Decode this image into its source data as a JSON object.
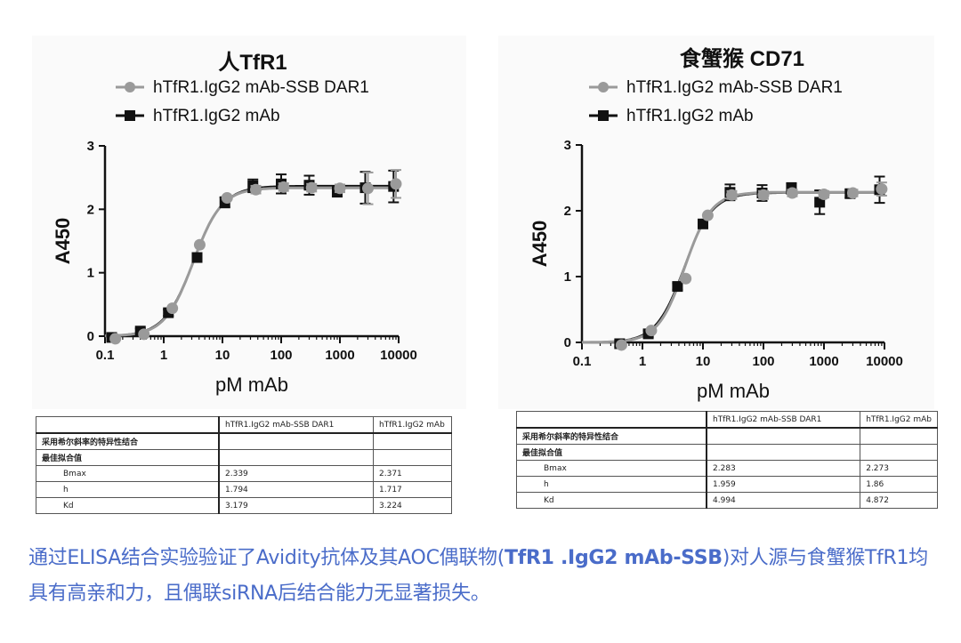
{
  "chart_data": [
    {
      "type": "scatter",
      "title": "人TfR1",
      "xlabel": "pM mAb",
      "ylabel": "A450",
      "xscale": "log",
      "xlim": [
        0.1,
        10000
      ],
      "ylim": [
        0,
        3
      ],
      "xticks": [
        "0.1",
        "1",
        "10",
        "100",
        "1000",
        "10000"
      ],
      "yticks": [
        "0",
        "1",
        "2",
        "3"
      ],
      "legend_position": "top",
      "series": [
        {
          "name": "hTfR1.IgG2 mAb-SSB DAR1",
          "marker": "circle",
          "color": "#9a9a9a",
          "x": [
            0.15,
            0.46,
            1.4,
            4.1,
            12,
            37,
            110,
            330,
            1000,
            3000,
            9000
          ],
          "y": [
            -0.04,
            0.03,
            0.44,
            1.44,
            2.18,
            2.31,
            2.35,
            2.34,
            2.33,
            2.33,
            2.4
          ],
          "err": [
            0,
            0,
            0,
            0,
            0,
            0.06,
            0.06,
            0.06,
            0.06,
            0.25,
            0.22
          ],
          "fit": {
            "bottom": 0,
            "top": 2.339,
            "kd": 3.179,
            "h": 1.794
          }
        },
        {
          "name": "hTfR1.IgG2 mAb",
          "marker": "square",
          "color": "#111111",
          "x": [
            0.13,
            0.4,
            1.2,
            3.7,
            11,
            33,
            100,
            300,
            900,
            2700,
            8200
          ],
          "y": [
            -0.02,
            0.08,
            0.37,
            1.24,
            2.11,
            2.37,
            2.4,
            2.38,
            2.28,
            2.34,
            2.36
          ],
          "err": [
            0.04,
            0.04,
            0.05,
            0.06,
            0.08,
            0.1,
            0.15,
            0.15,
            0.08,
            0.25,
            0.25
          ],
          "fit": {
            "bottom": 0,
            "top": 2.371,
            "kd": 3.224,
            "h": 1.717
          }
        }
      ]
    },
    {
      "type": "scatter",
      "title": "食蟹猴 CD71",
      "xlabel": "pM mAb",
      "ylabel": "A450",
      "xscale": "log",
      "xlim": [
        0.1,
        10000
      ],
      "ylim": [
        0,
        3
      ],
      "xticks": [
        "0.1",
        "1",
        "10",
        "100",
        "1000",
        "10000"
      ],
      "yticks": [
        "0",
        "1",
        "2",
        "3"
      ],
      "legend_position": "top",
      "series": [
        {
          "name": "hTfR1.IgG2 mAb-SSB DAR1",
          "marker": "circle",
          "color": "#9a9a9a",
          "x": [
            0.45,
            1.4,
            5.2,
            12,
            30,
            100,
            300,
            1000,
            3000,
            9000
          ],
          "y": [
            -0.04,
            0.18,
            0.97,
            1.93,
            2.24,
            2.24,
            2.27,
            2.25,
            2.27,
            2.33
          ],
          "err": [
            0,
            0,
            0,
            0,
            0.06,
            0.06,
            0.05,
            0.05,
            0.05,
            0.1
          ],
          "fit": {
            "bottom": 0,
            "top": 2.283,
            "kd": 4.994,
            "h": 1.959
          }
        },
        {
          "name": "hTfR1.IgG2 mAb",
          "marker": "square",
          "color": "#111111",
          "x": [
            0.42,
            1.25,
            3.8,
            10,
            28,
            95,
            290,
            850,
            2700,
            8300
          ],
          "y": [
            -0.02,
            0.13,
            0.85,
            1.8,
            2.28,
            2.27,
            2.34,
            2.13,
            2.26,
            2.32
          ],
          "err": [
            0.04,
            0.05,
            0.05,
            0.06,
            0.12,
            0.12,
            0.08,
            0.18,
            0.06,
            0.2
          ],
          "fit": {
            "bottom": 0,
            "top": 2.273,
            "kd": 4.872,
            "h": 1.86
          }
        }
      ]
    }
  ],
  "tables": [
    {
      "headers": [
        "",
        "hTfR1.IgG2 mAb-SSB DAR1",
        "hTfR1.IgG2 mAb"
      ],
      "section": "采用希尔斜率的特异性结合",
      "subsection": "最佳拟合值",
      "rows": [
        {
          "label": "Bmax",
          "v1": "2.339",
          "v2": "2.371"
        },
        {
          "label": "h",
          "v1": "1.794",
          "v2": "1.717"
        },
        {
          "label": "Kd",
          "v1": "3.179",
          "v2": "3.224"
        }
      ]
    },
    {
      "headers": [
        "",
        "hTfR1.IgG2 mAb-SSB DAR1",
        "hTfR1.IgG2 mAb"
      ],
      "section": "采用希尔斜率的特异性结合",
      "subsection": "最佳拟合值",
      "rows": [
        {
          "label": "Bmax",
          "v1": "2.283",
          "v2": "2.273"
        },
        {
          "label": "h",
          "v1": "1.959",
          "v2": "1.86"
        },
        {
          "label": "Kd",
          "v1": "4.994",
          "v2": "4.872"
        }
      ]
    }
  ],
  "caption": {
    "part1": "通过ELISA结合实验验证了Avidity抗体及其AOC偶联物(",
    "bold": "TfR1 .IgG2 mAb-SSB",
    "part2": ")对人源与食蟹猴TfR1均具有高亲和力，且偶联siRNA后结合能力无显著损失。"
  }
}
